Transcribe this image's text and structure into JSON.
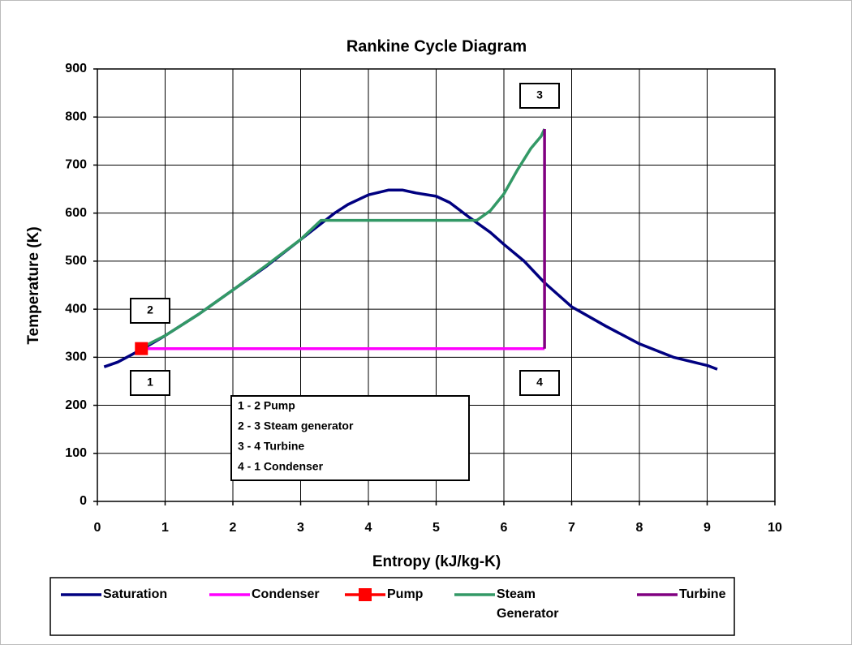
{
  "chart_data": {
    "type": "line",
    "title": "Rankine Cycle Diagram",
    "x_label": "Entropy (kJ/kg-K)",
    "y_label": "Temperature (K)",
    "xlim": [
      0,
      10
    ],
    "xticks": [
      0,
      1,
      2,
      3,
      4,
      5,
      6,
      7,
      8,
      9,
      10
    ],
    "ylim": [
      0,
      900
    ],
    "yticks": [
      0,
      100,
      200,
      300,
      400,
      500,
      600,
      700,
      800,
      900
    ],
    "grid": true,
    "legend": "bottom",
    "series": [
      {
        "name": "Saturation",
        "color": "#000080",
        "x": [
          0.1,
          0.3,
          0.5,
          0.7,
          1.0,
          1.5,
          2.0,
          2.5,
          3.0,
          3.5,
          3.7,
          4.0,
          4.3,
          4.5,
          4.7,
          5.0,
          5.2,
          5.5,
          5.8,
          6.0,
          6.3,
          6.6,
          7.0,
          7.5,
          8.0,
          8.5,
          9.0,
          9.15
        ],
        "values": [
          280,
          290,
          305,
          320,
          345,
          390,
          440,
          490,
          545,
          600,
          618,
          638,
          648,
          648,
          642,
          635,
          622,
          590,
          560,
          535,
          500,
          455,
          405,
          365,
          328,
          300,
          283,
          275
        ]
      },
      {
        "name": "Condenser",
        "color": "#ff00ff",
        "x": [
          0.65,
          6.6
        ],
        "values": [
          318,
          318
        ]
      },
      {
        "name": "Pump",
        "color": "#ff0000",
        "marker": "square",
        "x": [
          0.65
        ],
        "values": [
          318
        ]
      },
      {
        "name": "Steam Generator",
        "color": "#339966",
        "x": [
          0.65,
          1.0,
          1.5,
          2.0,
          2.5,
          3.0,
          3.3,
          5.6,
          5.8,
          6.0,
          6.2,
          6.4,
          6.55,
          6.6
        ],
        "values": [
          320,
          345,
          390,
          440,
          492,
          545,
          585,
          585,
          605,
          640,
          690,
          735,
          760,
          775
        ]
      },
      {
        "name": "Turbine",
        "color": "#800080",
        "x": [
          6.6,
          6.6
        ],
        "values": [
          775,
          318
        ]
      }
    ],
    "annotations": [
      "1",
      "2",
      "3",
      "4"
    ],
    "notes": [
      "1 - 2 Pump",
      "2 - 3 Steam generator",
      "3 - 4 Turbine",
      "4 - 1 Condenser"
    ]
  }
}
